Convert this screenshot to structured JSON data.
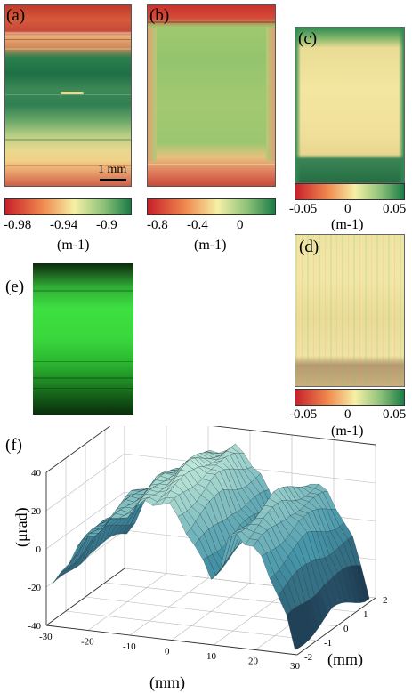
{
  "panels": {
    "a": {
      "label": "(a)",
      "scalebar": "1 mm"
    },
    "b": {
      "label": "(b)"
    },
    "c": {
      "label": "(c)"
    },
    "d": {
      "label": "(d)"
    },
    "e": {
      "label": "(e)"
    },
    "f": {
      "label": "(f)"
    }
  },
  "colorbars": {
    "a": {
      "ticks": [
        "-0.98",
        "-0.94",
        "-0.9"
      ],
      "unit": "(m-1)"
    },
    "b": {
      "ticks": [
        "-0.8",
        "-0.4",
        "0"
      ],
      "unit": "(m-1)"
    },
    "c": {
      "ticks": [
        "-0.05",
        "0",
        "0.05"
      ],
      "unit": "(m-1)"
    },
    "d": {
      "ticks": [
        "-0.05",
        "0",
        "0.05"
      ],
      "unit": "(m-1)"
    }
  },
  "colormap": {
    "low": "#c8202a",
    "mid": "#f5f0a6",
    "high": "#1a7d46"
  },
  "chart_data": {
    "type": "surface",
    "xlabel": "(mm)",
    "ylabel": "(mm)",
    "zlabel": "(μrad)",
    "x_ticks": [
      "-30",
      "-20",
      "-10",
      "0",
      "10",
      "20",
      "30"
    ],
    "y_ticks": [
      "-2",
      "-1",
      "0",
      "1",
      "2"
    ],
    "z_ticks": [
      "-40",
      "-20",
      "0",
      "20",
      "40"
    ],
    "xlim": [
      -30,
      30
    ],
    "ylim": [
      -2,
      2
    ],
    "zlim": [
      -40,
      40
    ],
    "grid": true,
    "profile_x": [
      -30,
      -26,
      -22,
      -18,
      -14,
      -10,
      -6,
      -2,
      2,
      6,
      10,
      14,
      18,
      22,
      26,
      30
    ],
    "profile_z": [
      -20,
      -2,
      10,
      18,
      24,
      30,
      36,
      36,
      28,
      10,
      -2,
      26,
      20,
      10,
      -10,
      -40
    ]
  }
}
